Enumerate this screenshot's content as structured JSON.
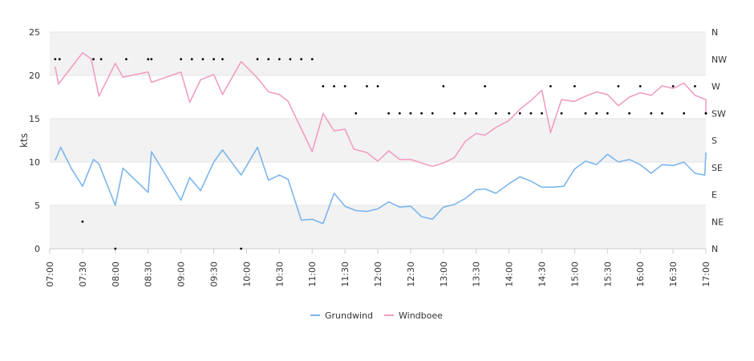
{
  "chart_data": {
    "type": "line",
    "ylabel": "kts",
    "ylim": [
      0,
      25
    ],
    "y_ticks": [
      "0",
      "5",
      "10",
      "15",
      "20",
      "25"
    ],
    "x_range": [
      "07:00",
      "17:00"
    ],
    "x_ticks": [
      "07:00",
      "07:30",
      "08:00",
      "08:30",
      "09:00",
      "09:30",
      "10:00",
      "10:30",
      "11:00",
      "11:30",
      "12:00",
      "12:30",
      "13:00",
      "13:30",
      "14:00",
      "14:30",
      "15:00",
      "15:30",
      "16:00",
      "16:30",
      "17:00"
    ],
    "right_axis": {
      "labels": [
        "N",
        "NE",
        "E",
        "SE",
        "S",
        "SW",
        "W",
        "NW",
        "N"
      ],
      "range_degrees": [
        0,
        360
      ]
    },
    "grid": true,
    "band_colors": [
      "#f2f2f2",
      "#ffffff"
    ],
    "legend_position": "bottom-center",
    "series": [
      {
        "name": "Grundwind",
        "color": "#7cb5ec",
        "points": [
          [
            "07:05",
            10.2
          ],
          [
            "07:10",
            11.7
          ],
          [
            "07:20",
            9.2
          ],
          [
            "07:30",
            7.2
          ],
          [
            "07:40",
            10.3
          ],
          [
            "07:45",
            9.8
          ],
          [
            "08:00",
            5.0
          ],
          [
            "08:07",
            9.3
          ],
          [
            "08:30",
            6.5
          ],
          [
            "08:33",
            11.2
          ],
          [
            "09:00",
            5.6
          ],
          [
            "09:08",
            8.2
          ],
          [
            "09:18",
            6.7
          ],
          [
            "09:30",
            10.0
          ],
          [
            "09:38",
            11.4
          ],
          [
            "09:55",
            8.5
          ],
          [
            "10:10",
            11.7
          ],
          [
            "10:20",
            7.9
          ],
          [
            "10:30",
            8.5
          ],
          [
            "10:38",
            8.0
          ],
          [
            "10:50",
            3.3
          ],
          [
            "11:00",
            3.4
          ],
          [
            "11:10",
            2.9
          ],
          [
            "11:20",
            6.4
          ],
          [
            "11:30",
            4.9
          ],
          [
            "11:40",
            4.4
          ],
          [
            "11:50",
            4.3
          ],
          [
            "12:00",
            4.6
          ],
          [
            "12:10",
            5.4
          ],
          [
            "12:20",
            4.8
          ],
          [
            "12:30",
            4.9
          ],
          [
            "12:40",
            3.7
          ],
          [
            "12:50",
            3.4
          ],
          [
            "13:00",
            4.8
          ],
          [
            "13:10",
            5.1
          ],
          [
            "13:20",
            5.8
          ],
          [
            "13:30",
            6.8
          ],
          [
            "13:38",
            6.9
          ],
          [
            "13:48",
            6.4
          ],
          [
            "14:00",
            7.5
          ],
          [
            "14:10",
            8.3
          ],
          [
            "14:20",
            7.8
          ],
          [
            "14:30",
            7.1
          ],
          [
            "14:40",
            7.1
          ],
          [
            "14:50",
            7.2
          ],
          [
            "15:00",
            9.2
          ],
          [
            "15:10",
            10.1
          ],
          [
            "15:20",
            9.7
          ],
          [
            "15:30",
            10.9
          ],
          [
            "15:40",
            10.0
          ],
          [
            "15:50",
            10.3
          ],
          [
            "16:00",
            9.7
          ],
          [
            "16:10",
            8.7
          ],
          [
            "16:20",
            9.7
          ],
          [
            "16:30",
            9.6
          ],
          [
            "16:40",
            10.0
          ],
          [
            "16:50",
            8.7
          ],
          [
            "16:59",
            8.5
          ],
          [
            "17:00",
            11.1
          ]
        ]
      },
      {
        "name": "Windboee",
        "color": "#f19ec2",
        "points": [
          [
            "07:05",
            21.0
          ],
          [
            "07:08",
            19.0
          ],
          [
            "07:30",
            22.6
          ],
          [
            "07:38",
            21.9
          ],
          [
            "07:45",
            17.6
          ],
          [
            "08:00",
            21.4
          ],
          [
            "08:07",
            19.8
          ],
          [
            "08:30",
            20.4
          ],
          [
            "08:33",
            19.2
          ],
          [
            "09:00",
            20.4
          ],
          [
            "09:08",
            16.9
          ],
          [
            "09:18",
            19.5
          ],
          [
            "09:30",
            20.1
          ],
          [
            "09:38",
            17.8
          ],
          [
            "09:55",
            21.6
          ],
          [
            "10:10",
            19.7
          ],
          [
            "10:20",
            18.1
          ],
          [
            "10:30",
            17.8
          ],
          [
            "10:38",
            17.0
          ],
          [
            "11:00",
            11.2
          ],
          [
            "11:10",
            15.6
          ],
          [
            "11:20",
            13.6
          ],
          [
            "11:30",
            13.8
          ],
          [
            "11:38",
            11.5
          ],
          [
            "11:50",
            11.1
          ],
          [
            "12:00",
            10.1
          ],
          [
            "12:10",
            11.3
          ],
          [
            "12:20",
            10.3
          ],
          [
            "12:30",
            10.3
          ],
          [
            "12:40",
            9.9
          ],
          [
            "12:50",
            9.5
          ],
          [
            "13:00",
            9.9
          ],
          [
            "13:10",
            10.5
          ],
          [
            "13:20",
            12.4
          ],
          [
            "13:30",
            13.3
          ],
          [
            "13:38",
            13.1
          ],
          [
            "13:48",
            14.0
          ],
          [
            "14:00",
            14.8
          ],
          [
            "14:10",
            16.1
          ],
          [
            "14:20",
            17.1
          ],
          [
            "14:30",
            18.3
          ],
          [
            "14:38",
            13.4
          ],
          [
            "14:48",
            17.2
          ],
          [
            "15:00",
            17.0
          ],
          [
            "15:10",
            17.6
          ],
          [
            "15:20",
            18.1
          ],
          [
            "15:30",
            17.8
          ],
          [
            "15:40",
            16.5
          ],
          [
            "15:50",
            17.5
          ],
          [
            "16:00",
            18.0
          ],
          [
            "16:10",
            17.7
          ],
          [
            "16:20",
            18.8
          ],
          [
            "16:30",
            18.5
          ],
          [
            "16:40",
            19.1
          ],
          [
            "16:50",
            17.7
          ],
          [
            "17:00",
            17.2
          ],
          [
            "17:00",
            15.5
          ]
        ]
      }
    ],
    "direction_points": [
      [
        "07:05",
        "NW"
      ],
      [
        "07:09",
        "NW"
      ],
      [
        "07:30",
        "NE"
      ],
      [
        "07:40",
        "NW"
      ],
      [
        "07:47",
        "NW"
      ],
      [
        "08:00",
        "N"
      ],
      [
        "08:10",
        "NW"
      ],
      [
        "08:30",
        "NW"
      ],
      [
        "08:33",
        "NW"
      ],
      [
        "09:00",
        "NW"
      ],
      [
        "09:10",
        "NW"
      ],
      [
        "09:20",
        "NW"
      ],
      [
        "09:30",
        "NW"
      ],
      [
        "09:38",
        "NW"
      ],
      [
        "09:55",
        "N"
      ],
      [
        "10:10",
        "NW"
      ],
      [
        "10:20",
        "NW"
      ],
      [
        "10:30",
        "NW"
      ],
      [
        "10:40",
        "NW"
      ],
      [
        "10:50",
        "NW"
      ],
      [
        "11:00",
        "NW"
      ],
      [
        "11:10",
        "W"
      ],
      [
        "11:20",
        "W"
      ],
      [
        "11:30",
        "W"
      ],
      [
        "11:40",
        "SW"
      ],
      [
        "11:50",
        "W"
      ],
      [
        "12:00",
        "W"
      ],
      [
        "12:10",
        "SW"
      ],
      [
        "12:20",
        "SW"
      ],
      [
        "12:30",
        "SW"
      ],
      [
        "12:40",
        "SW"
      ],
      [
        "12:50",
        "SW"
      ],
      [
        "13:00",
        "W"
      ],
      [
        "13:10",
        "SW"
      ],
      [
        "13:20",
        "SW"
      ],
      [
        "13:30",
        "SW"
      ],
      [
        "13:38",
        "W"
      ],
      [
        "13:48",
        "SW"
      ],
      [
        "14:00",
        "SW"
      ],
      [
        "14:10",
        "SW"
      ],
      [
        "14:20",
        "SW"
      ],
      [
        "14:30",
        "SW"
      ],
      [
        "14:38",
        "W"
      ],
      [
        "14:48",
        "SW"
      ],
      [
        "15:00",
        "W"
      ],
      [
        "15:10",
        "SW"
      ],
      [
        "15:20",
        "SW"
      ],
      [
        "15:30",
        "SW"
      ],
      [
        "15:40",
        "W"
      ],
      [
        "15:50",
        "SW"
      ],
      [
        "16:00",
        "W"
      ],
      [
        "16:10",
        "SW"
      ],
      [
        "16:20",
        "SW"
      ],
      [
        "16:30",
        "W"
      ],
      [
        "16:40",
        "SW"
      ],
      [
        "16:50",
        "W"
      ],
      [
        "17:00",
        "SW"
      ],
      [
        "17:00",
        "SW"
      ]
    ]
  }
}
